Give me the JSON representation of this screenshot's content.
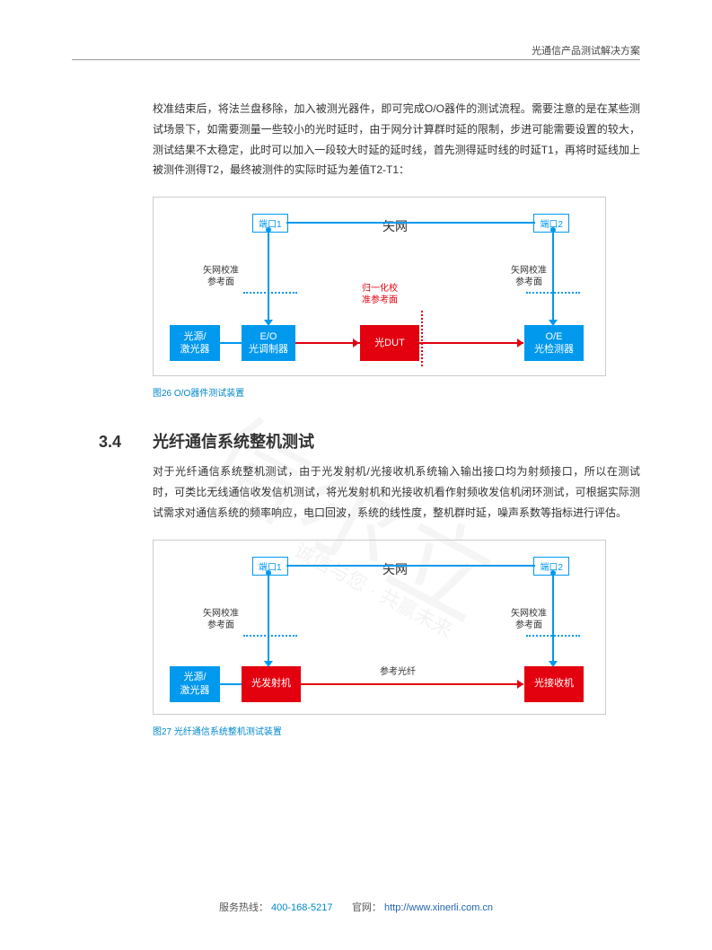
{
  "header": {
    "title": "光通信产品测试解决方案"
  },
  "intro": "校准结束后，将法兰盘移除，加入被测光器件，即可完成O/O器件的测试流程。需要注意的是在某些测试场景下，如需要测量一些较小的光时延时，由于网分计算群时延的限制，步进可能需要设置的较大，测试结果不太稳定，此时可以加入一段较大时延的延时线，首先测得延时线的时延T1，再将时延线加上被测件测得T2，最终被测件的实际时延为差值T2-T1：",
  "fig26": {
    "caption": "图26 O/O器件测试装置",
    "big_label": "矢网",
    "port1": "端口1",
    "port2": "端口2",
    "cal_left": "矢网校准\n参考面",
    "cal_right": "矢网校准\n参考面",
    "norm_cal": "归一化校\n准参考面",
    "source": "光源/\n激光器",
    "eo": "E/O\n光调制器",
    "dut": "光DUT",
    "oe": "O/E\n光检测器",
    "colors": {
      "blue": "#0099ee",
      "red": "#e3000f",
      "border": "#cccccc"
    }
  },
  "section": {
    "num": "3.4",
    "title": "光纤通信系统整机测试",
    "body": "对于光纤通信系统整机测试，由于光发射机/光接收机系统输入输出接口均为射频接口，所以在测试时，可类比无线通信收发信机测试，将光发射机和光接收机看作射频收发信机闭环测试，可根据实际测试需求对通信系统的频率响应，电口回波，系统的线性度，整机群时延，噪声系数等指标进行评估。"
  },
  "fig27": {
    "caption": "图27 光纤通信系统整机测试装置",
    "big_label": "矢网",
    "port1": "端口1",
    "port2": "端口2",
    "cal_left": "矢网校准\n参考面",
    "cal_right": "矢网校准\n参考面",
    "ref_fiber": "参考光纤",
    "source": "光源/\n激光器",
    "tx": "光发射机",
    "rx": "光接收机"
  },
  "footer": {
    "hotline_label": "服务热线：",
    "hotline": "400-168-5217",
    "site_label": "官网：",
    "site": "http://www.xinerli.com.cn"
  },
  "watermark": "信尔立"
}
